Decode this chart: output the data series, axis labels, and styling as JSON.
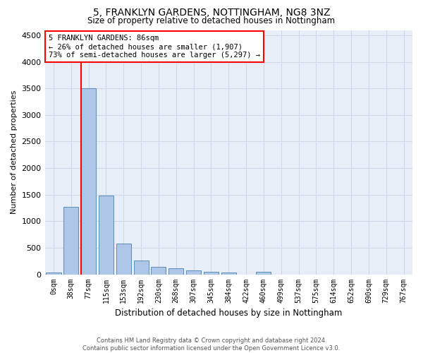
{
  "title": "5, FRANKLYN GARDENS, NOTTINGHAM, NG8 3NZ",
  "subtitle": "Size of property relative to detached houses in Nottingham",
  "xlabel": "Distribution of detached houses by size in Nottingham",
  "ylabel": "Number of detached properties",
  "footer_line1": "Contains HM Land Registry data © Crown copyright and database right 2024.",
  "footer_line2": "Contains public sector information licensed under the Open Government Licence v3.0.",
  "bar_labels": [
    "0sqm",
    "38sqm",
    "77sqm",
    "115sqm",
    "153sqm",
    "192sqm",
    "230sqm",
    "268sqm",
    "307sqm",
    "345sqm",
    "384sqm",
    "422sqm",
    "460sqm",
    "499sqm",
    "537sqm",
    "575sqm",
    "614sqm",
    "652sqm",
    "690sqm",
    "729sqm",
    "767sqm"
  ],
  "bar_values": [
    30,
    1270,
    3500,
    1480,
    580,
    255,
    135,
    110,
    70,
    45,
    30,
    0,
    50,
    0,
    0,
    0,
    0,
    0,
    0,
    0,
    0
  ],
  "bar_color": "#aec6e8",
  "bar_edge_color": "#5b8db8",
  "property_line_color": "red",
  "annotation_text_line1": "5 FRANKLYN GARDENS: 86sqm",
  "annotation_text_line2": "← 26% of detached houses are smaller (1,907)",
  "annotation_text_line3": "73% of semi-detached houses are larger (5,297) →",
  "annotation_box_color": "white",
  "annotation_box_edge": "red",
  "ylim": [
    0,
    4600
  ],
  "yticks": [
    0,
    500,
    1000,
    1500,
    2000,
    2500,
    3000,
    3500,
    4000,
    4500
  ],
  "grid_color": "#d0d8e8",
  "bg_color": "#e8eef8",
  "property_bin_index": 2
}
